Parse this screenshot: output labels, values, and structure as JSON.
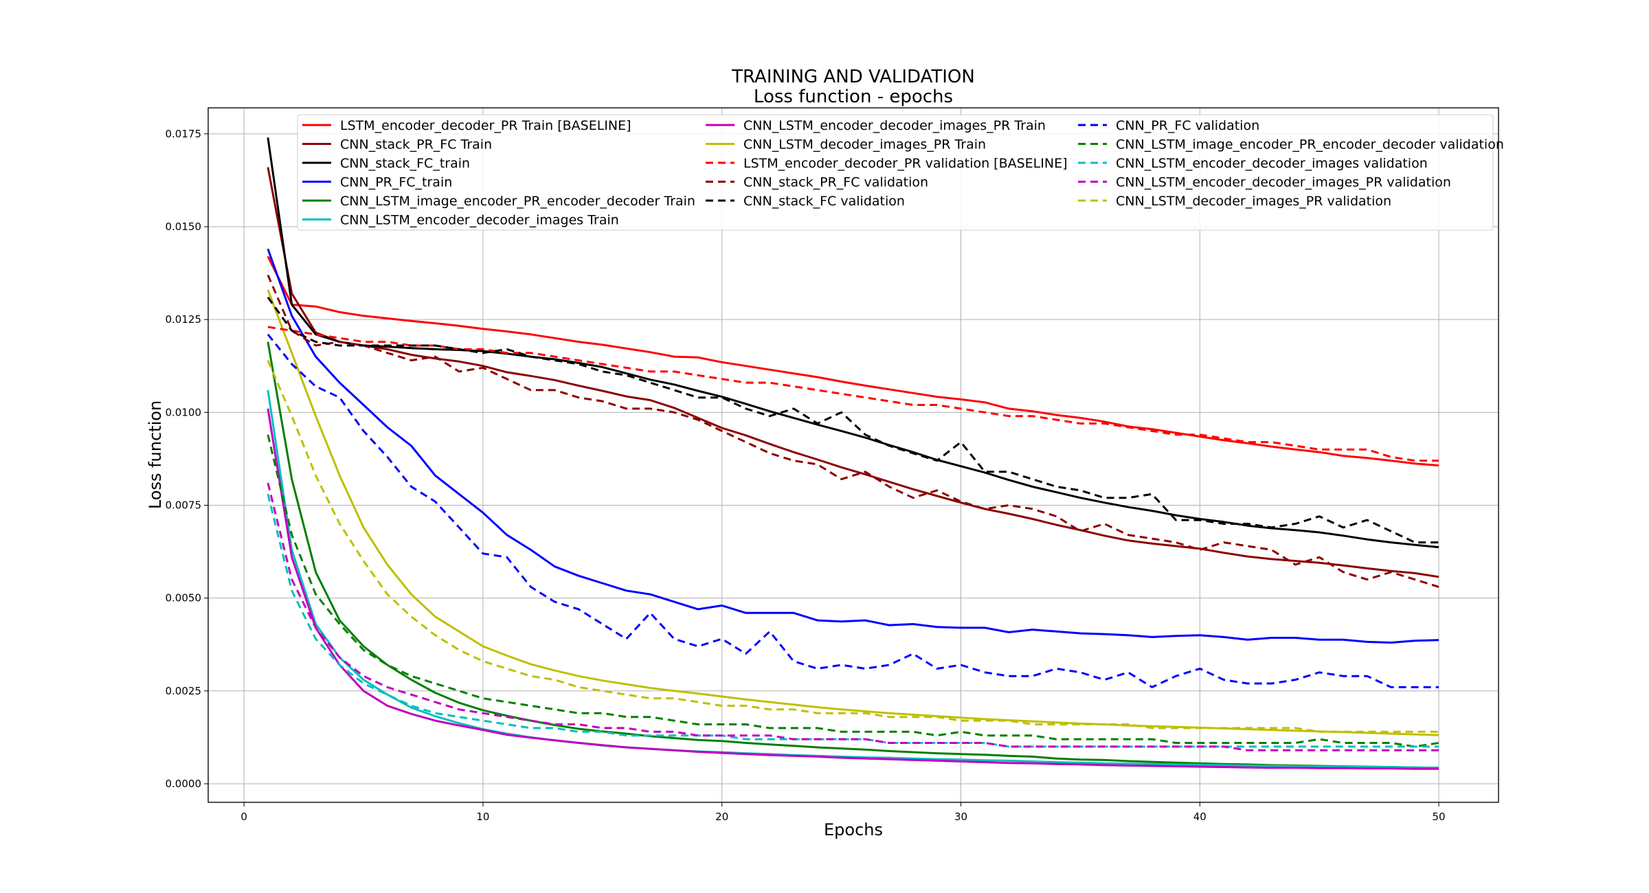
{
  "chart_data": {
    "type": "line",
    "title": "TRAINING AND VALIDATION",
    "subtitle": "Loss function - epochs",
    "xlabel": "Epochs",
    "ylabel": "Loss function",
    "xlim": [
      -1.5,
      52.5
    ],
    "ylim": [
      -0.0005,
      0.0182
    ],
    "xticks": [
      0,
      10,
      20,
      30,
      40,
      50
    ],
    "xtick_labels": [
      "0",
      "10",
      "20",
      "30",
      "40",
      "50"
    ],
    "yticks": [
      0.0,
      0.0025,
      0.005,
      0.0075,
      0.01,
      0.0125,
      0.015,
      0.0175
    ],
    "ytick_labels": [
      "0.0000",
      "0.0025",
      "0.0050",
      "0.0075",
      "0.0100",
      "0.0125",
      "0.0150",
      "0.0175"
    ],
    "grid": true,
    "legend_position": "top",
    "x": [
      1,
      2,
      3,
      4,
      5,
      6,
      7,
      8,
      9,
      10,
      11,
      12,
      13,
      14,
      15,
      16,
      17,
      18,
      19,
      20,
      21,
      22,
      23,
      24,
      25,
      26,
      27,
      28,
      29,
      30,
      31,
      32,
      33,
      34,
      35,
      36,
      37,
      38,
      39,
      40,
      41,
      42,
      43,
      44,
      45,
      46,
      47,
      48,
      49,
      50
    ],
    "series": [
      {
        "name": "LSTM_encoder_decoder_PR Train [BASELINE]",
        "color": "#ff0000",
        "dash": "solid",
        "values": [
          0.0142,
          0.0129,
          0.01285,
          0.0127,
          0.0126,
          0.01253,
          0.01246,
          0.0124,
          0.01233,
          0.01225,
          0.01218,
          0.0121,
          0.012,
          0.0119,
          0.01182,
          0.01172,
          0.01162,
          0.0115,
          0.01148,
          0.01135,
          0.01125,
          0.01115,
          0.01105,
          0.01095,
          0.01083,
          0.01072,
          0.01062,
          0.01052,
          0.01042,
          0.01035,
          0.01027,
          0.0101,
          0.01003,
          0.00993,
          0.00985,
          0.00975,
          0.00962,
          0.00955,
          0.00945,
          0.00935,
          0.00925,
          0.00917,
          0.00908,
          0.009,
          0.00893,
          0.00883,
          0.00877,
          0.0087,
          0.00862,
          0.00857
        ]
      },
      {
        "name": "CNN_stack_PR_FC Train",
        "color": "#8b0000",
        "dash": "solid",
        "values": [
          0.0166,
          0.0132,
          0.01215,
          0.0119,
          0.0118,
          0.0117,
          0.01155,
          0.01145,
          0.01137,
          0.01125,
          0.01108,
          0.01098,
          0.01087,
          0.01072,
          0.01058,
          0.01043,
          0.01033,
          0.01012,
          0.00985,
          0.00958,
          0.00938,
          0.00915,
          0.00893,
          0.00873,
          0.00852,
          0.00833,
          0.00813,
          0.00793,
          0.00775,
          0.00757,
          0.0074,
          0.00727,
          0.00713,
          0.00697,
          0.00683,
          0.00668,
          0.00655,
          0.00647,
          0.0064,
          0.00633,
          0.00622,
          0.00612,
          0.00605,
          0.006,
          0.00595,
          0.00588,
          0.0058,
          0.00573,
          0.00567,
          0.00557
        ]
      },
      {
        "name": "CNN_stack_FC_train",
        "color": "#000000",
        "dash": "solid",
        "values": [
          0.0174,
          0.0129,
          0.0121,
          0.0119,
          0.0118,
          0.01177,
          0.01173,
          0.0117,
          0.01168,
          0.01165,
          0.01158,
          0.0115,
          0.01143,
          0.01133,
          0.01122,
          0.01105,
          0.01088,
          0.01075,
          0.01058,
          0.01042,
          0.01023,
          0.01003,
          0.00985,
          0.00967,
          0.0095,
          0.00932,
          0.00912,
          0.00893,
          0.00872,
          0.00855,
          0.00838,
          0.00818,
          0.008,
          0.00785,
          0.0077,
          0.00757,
          0.00745,
          0.00735,
          0.00723,
          0.00713,
          0.00705,
          0.00695,
          0.00688,
          0.00683,
          0.00677,
          0.00668,
          0.00658,
          0.0065,
          0.00643,
          0.00637
        ]
      },
      {
        "name": "CNN_PR_FC_train",
        "color": "#0000ff",
        "dash": "solid",
        "values": [
          0.0144,
          0.0126,
          0.0115,
          0.0108,
          0.0102,
          0.0096,
          0.0091,
          0.0083,
          0.0078,
          0.0073,
          0.0067,
          0.0063,
          0.00585,
          0.0056,
          0.0054,
          0.0052,
          0.0051,
          0.0049,
          0.0047,
          0.0048,
          0.0046,
          0.0046,
          0.0046,
          0.0044,
          0.00437,
          0.0044,
          0.00427,
          0.0043,
          0.00422,
          0.0042,
          0.0042,
          0.00408,
          0.00415,
          0.0041,
          0.00405,
          0.00403,
          0.004,
          0.00395,
          0.00398,
          0.004,
          0.00395,
          0.00388,
          0.00393,
          0.00393,
          0.00388,
          0.00388,
          0.00382,
          0.0038,
          0.00385,
          0.00387
        ]
      },
      {
        "name": "CNN_LSTM_image_encoder_PR_encoder_decoder Train",
        "color": "#008000",
        "dash": "solid",
        "values": [
          0.0119,
          0.0082,
          0.0057,
          0.0044,
          0.0037,
          0.0032,
          0.0028,
          0.00245,
          0.00218,
          0.00198,
          0.00183,
          0.0017,
          0.00158,
          0.00148,
          0.00141,
          0.00135,
          0.00128,
          0.00123,
          0.00118,
          0.00115,
          0.0011,
          0.00106,
          0.00102,
          0.00098,
          0.00095,
          0.00092,
          0.00088,
          0.00085,
          0.00082,
          0.0008,
          0.00078,
          0.00075,
          0.00073,
          0.00068,
          0.00065,
          0.00064,
          0.00061,
          0.00059,
          0.00057,
          0.00055,
          0.00053,
          0.00052,
          0.0005,
          0.00049,
          0.00048,
          0.00047,
          0.00046,
          0.00045,
          0.00044,
          0.00043
        ]
      },
      {
        "name": "CNN_LSTM_encoder_decoder_images Train",
        "color": "#00bfbf",
        "dash": "solid",
        "values": [
          0.0106,
          0.0063,
          0.0043,
          0.0034,
          0.0028,
          0.0024,
          0.00205,
          0.00182,
          0.00163,
          0.00147,
          0.00135,
          0.00125,
          0.00117,
          0.0011,
          0.00103,
          0.00098,
          0.00094,
          0.0009,
          0.00087,
          0.00085,
          0.00082,
          0.0008,
          0.00077,
          0.00075,
          0.00073,
          0.00071,
          0.0007,
          0.00068,
          0.00066,
          0.00065,
          0.00063,
          0.00062,
          0.0006,
          0.00058,
          0.00057,
          0.00055,
          0.00054,
          0.00053,
          0.00052,
          0.00051,
          0.0005,
          0.00049,
          0.00048,
          0.00047,
          0.00047,
          0.00046,
          0.00045,
          0.00045,
          0.00044,
          0.00043
        ]
      },
      {
        "name": "CNN_LSTM_encoder_decoder_images_PR Train",
        "color": "#bf00bf",
        "dash": "solid",
        "values": [
          0.0101,
          0.0061,
          0.0042,
          0.0032,
          0.0025,
          0.0021,
          0.00188,
          0.0017,
          0.00157,
          0.00145,
          0.00132,
          0.00124,
          0.00117,
          0.0011,
          0.00104,
          0.00098,
          0.00094,
          0.0009,
          0.00086,
          0.00083,
          0.0008,
          0.00077,
          0.00075,
          0.00073,
          0.0007,
          0.00068,
          0.00066,
          0.00064,
          0.00062,
          0.0006,
          0.00058,
          0.00056,
          0.00055,
          0.00053,
          0.00052,
          0.0005,
          0.00049,
          0.00048,
          0.00047,
          0.00046,
          0.00045,
          0.00044,
          0.00043,
          0.00043,
          0.00042,
          0.00042,
          0.00041,
          0.00041,
          0.0004,
          0.0004
        ]
      },
      {
        "name": "CNN_LSTM_decoder_images_PR Train",
        "color": "#bfbf00",
        "dash": "solid",
        "values": [
          0.0133,
          0.0116,
          0.0099,
          0.0083,
          0.0069,
          0.0059,
          0.0051,
          0.0045,
          0.0041,
          0.0037,
          0.00345,
          0.00322,
          0.00305,
          0.0029,
          0.00278,
          0.00268,
          0.00258,
          0.0025,
          0.00243,
          0.00235,
          0.00227,
          0.0022,
          0.00213,
          0.00206,
          0.002,
          0.00195,
          0.0019,
          0.00186,
          0.00182,
          0.00178,
          0.00174,
          0.00171,
          0.00168,
          0.00165,
          0.00162,
          0.0016,
          0.00157,
          0.00155,
          0.00153,
          0.00151,
          0.00149,
          0.00147,
          0.00145,
          0.00143,
          0.00141,
          0.00139,
          0.00137,
          0.00135,
          0.00133,
          0.00131
        ]
      },
      {
        "name": "LSTM_encoder_decoder_PR validation [BASELINE]",
        "color": "#ff0000",
        "dash": "dashed",
        "values": [
          0.0123,
          0.0122,
          0.0121,
          0.012,
          0.0119,
          0.0119,
          0.0118,
          0.0118,
          0.0117,
          0.0117,
          0.0116,
          0.0116,
          0.0115,
          0.0114,
          0.0113,
          0.0112,
          0.0111,
          0.0111,
          0.011,
          0.0109,
          0.0108,
          0.0108,
          0.0107,
          0.0106,
          0.0105,
          0.0104,
          0.0103,
          0.0102,
          0.0102,
          0.0101,
          0.01,
          0.0099,
          0.0099,
          0.0098,
          0.0097,
          0.0097,
          0.0096,
          0.0095,
          0.0094,
          0.0094,
          0.0093,
          0.0092,
          0.0092,
          0.0091,
          0.009,
          0.009,
          0.009,
          0.0088,
          0.0087,
          0.0087
        ]
      },
      {
        "name": "CNN_stack_PR_FC validation",
        "color": "#8b0000",
        "dash": "dashed",
        "values": [
          0.0137,
          0.0122,
          0.0118,
          0.0119,
          0.0118,
          0.0116,
          0.0114,
          0.0115,
          0.0111,
          0.0112,
          0.0109,
          0.0106,
          0.0106,
          0.0104,
          0.0103,
          0.0101,
          0.0101,
          0.01,
          0.0098,
          0.0095,
          0.0092,
          0.0089,
          0.0087,
          0.0086,
          0.0082,
          0.0084,
          0.008,
          0.0077,
          0.0079,
          0.0076,
          0.0074,
          0.0075,
          0.0074,
          0.0072,
          0.0068,
          0.007,
          0.0067,
          0.0066,
          0.0065,
          0.0063,
          0.0065,
          0.0064,
          0.0063,
          0.0059,
          0.0061,
          0.0057,
          0.0055,
          0.0057,
          0.0055,
          0.0053
        ]
      },
      {
        "name": "CNN_stack_FC validation",
        "color": "#000000",
        "dash": "dashed",
        "values": [
          0.0131,
          0.0122,
          0.0119,
          0.0118,
          0.0118,
          0.0118,
          0.0118,
          0.0118,
          0.0117,
          0.0116,
          0.0117,
          0.0115,
          0.0114,
          0.0113,
          0.0111,
          0.011,
          0.0108,
          0.0106,
          0.0104,
          0.0104,
          0.0101,
          0.0099,
          0.0101,
          0.0097,
          0.01,
          0.0094,
          0.0091,
          0.0089,
          0.0087,
          0.0092,
          0.0084,
          0.0084,
          0.0082,
          0.008,
          0.0079,
          0.0077,
          0.0077,
          0.0078,
          0.0071,
          0.0071,
          0.007,
          0.007,
          0.0069,
          0.007,
          0.0072,
          0.0069,
          0.0071,
          0.0068,
          0.0065,
          0.0065
        ]
      },
      {
        "name": "CNN_PR_FC validation",
        "color": "#0000ff",
        "dash": "dashed",
        "values": [
          0.0121,
          0.0113,
          0.0107,
          0.0104,
          0.0095,
          0.0088,
          0.008,
          0.0076,
          0.0069,
          0.0062,
          0.0061,
          0.0053,
          0.0049,
          0.0047,
          0.0043,
          0.0039,
          0.0046,
          0.0039,
          0.0037,
          0.0039,
          0.0035,
          0.0041,
          0.0033,
          0.0031,
          0.0032,
          0.0031,
          0.0032,
          0.0035,
          0.0031,
          0.0032,
          0.003,
          0.0029,
          0.0029,
          0.0031,
          0.003,
          0.0028,
          0.003,
          0.0026,
          0.0029,
          0.0031,
          0.0028,
          0.0027,
          0.0027,
          0.0028,
          0.003,
          0.0029,
          0.0029,
          0.0026,
          0.0026,
          0.0026
        ]
      },
      {
        "name": "CNN_LSTM_image_encoder_PR_encoder_decoder validation",
        "color": "#008000",
        "dash": "dashed",
        "values": [
          0.0094,
          0.0067,
          0.0051,
          0.0043,
          0.0036,
          0.0032,
          0.0029,
          0.0027,
          0.0025,
          0.0023,
          0.0022,
          0.0021,
          0.002,
          0.0019,
          0.0019,
          0.0018,
          0.0018,
          0.0017,
          0.0016,
          0.0016,
          0.0016,
          0.0015,
          0.0015,
          0.0015,
          0.0014,
          0.0014,
          0.0014,
          0.0014,
          0.0013,
          0.0014,
          0.0013,
          0.0013,
          0.0013,
          0.0012,
          0.0012,
          0.0012,
          0.0012,
          0.0012,
          0.0011,
          0.0011,
          0.0011,
          0.0011,
          0.0011,
          0.0011,
          0.0012,
          0.0011,
          0.0011,
          0.0011,
          0.001,
          0.0011
        ]
      },
      {
        "name": "CNN_LSTM_encoder_decoder_images validation",
        "color": "#00bfbf",
        "dash": "dashed",
        "values": [
          0.0078,
          0.0052,
          0.0039,
          0.0032,
          0.0027,
          0.0024,
          0.0021,
          0.0019,
          0.0018,
          0.0017,
          0.0016,
          0.0015,
          0.0015,
          0.0014,
          0.0014,
          0.0013,
          0.0013,
          0.0013,
          0.0013,
          0.0013,
          0.0012,
          0.0012,
          0.0012,
          0.0012,
          0.0012,
          0.0012,
          0.0011,
          0.0011,
          0.0011,
          0.0011,
          0.0011,
          0.001,
          0.001,
          0.001,
          0.001,
          0.001,
          0.001,
          0.001,
          0.001,
          0.001,
          0.001,
          0.001,
          0.001,
          0.001,
          0.001,
          0.001,
          0.001,
          0.001,
          0.001,
          0.001
        ]
      },
      {
        "name": "CNN_LSTM_encoder_decoder_images_PR validation",
        "color": "#bf00bf",
        "dash": "dashed",
        "values": [
          0.0081,
          0.0055,
          0.0042,
          0.0034,
          0.0029,
          0.0026,
          0.0024,
          0.0022,
          0.002,
          0.0019,
          0.0018,
          0.0017,
          0.0016,
          0.0016,
          0.0015,
          0.0015,
          0.0014,
          0.0014,
          0.0013,
          0.0013,
          0.0013,
          0.0013,
          0.0012,
          0.0012,
          0.0012,
          0.0012,
          0.0011,
          0.0011,
          0.0011,
          0.0011,
          0.0011,
          0.001,
          0.001,
          0.001,
          0.001,
          0.001,
          0.001,
          0.001,
          0.001,
          0.001,
          0.001,
          0.0009,
          0.0009,
          0.0009,
          0.0009,
          0.0009,
          0.0009,
          0.0009,
          0.0009,
          0.0009
        ]
      },
      {
        "name": "CNN_LSTM_decoder_images_PR validation",
        "color": "#bfbf00",
        "dash": "dashed",
        "values": [
          0.0114,
          0.0099,
          0.0083,
          0.007,
          0.006,
          0.0051,
          0.0045,
          0.004,
          0.0036,
          0.0033,
          0.0031,
          0.0029,
          0.0028,
          0.0026,
          0.0025,
          0.0024,
          0.0023,
          0.0023,
          0.0022,
          0.0021,
          0.0021,
          0.002,
          0.002,
          0.0019,
          0.0019,
          0.0019,
          0.0018,
          0.0018,
          0.0018,
          0.0017,
          0.0017,
          0.0017,
          0.0016,
          0.0016,
          0.0016,
          0.0016,
          0.0016,
          0.0015,
          0.0015,
          0.0015,
          0.0015,
          0.0015,
          0.0015,
          0.0015,
          0.0014,
          0.0014,
          0.0014,
          0.0014,
          0.0014,
          0.0014
        ]
      }
    ],
    "legend_columns": [
      [
        "LSTM_encoder_decoder_PR Train [BASELINE]",
        "CNN_stack_PR_FC Train",
        "CNN_stack_FC_train",
        "CNN_PR_FC_train",
        "CNN_LSTM_image_encoder_PR_encoder_decoder Train",
        "CNN_LSTM_encoder_decoder_images Train"
      ],
      [
        "CNN_LSTM_encoder_decoder_images_PR Train",
        "CNN_LSTM_decoder_images_PR Train",
        "LSTM_encoder_decoder_PR validation [BASELINE]",
        "CNN_stack_PR_FC validation",
        "CNN_stack_FC validation"
      ],
      [
        "CNN_PR_FC validation",
        "CNN_LSTM_image_encoder_PR_encoder_decoder validation",
        "CNN_LSTM_encoder_decoder_images validation",
        "CNN_LSTM_encoder_decoder_images_PR validation",
        "CNN_LSTM_decoder_images_PR validation"
      ]
    ]
  }
}
